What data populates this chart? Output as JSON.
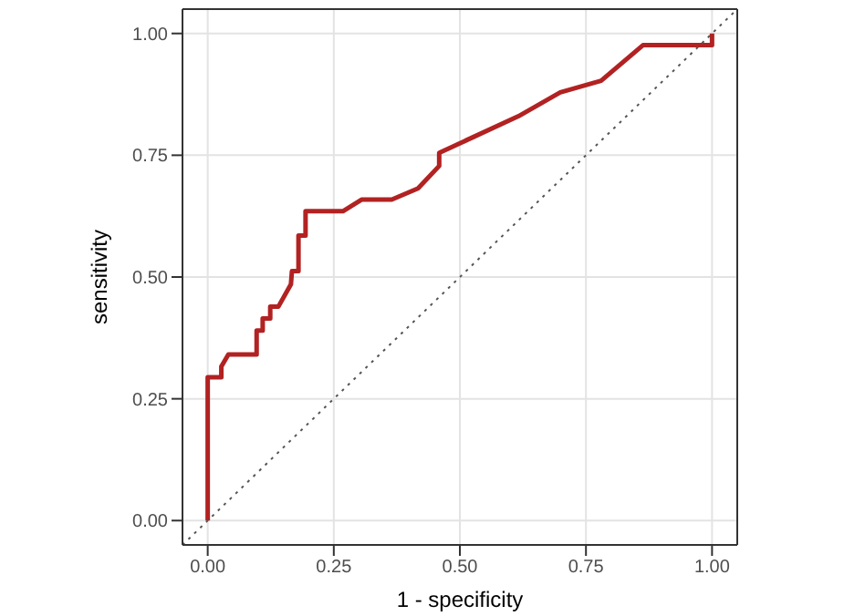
{
  "chart_data": {
    "type": "line",
    "xlabel": "1 - specificity",
    "ylabel": "sensitivity",
    "xlim": [
      -0.05,
      1.05
    ],
    "ylim": [
      -0.05,
      1.05
    ],
    "xticks": [
      {
        "value": 0,
        "label": "0.00"
      },
      {
        "value": 0.25,
        "label": "0.25"
      },
      {
        "value": 0.5,
        "label": "0.50"
      },
      {
        "value": 0.75,
        "label": "0.75"
      },
      {
        "value": 1,
        "label": "1.00"
      }
    ],
    "yticks": [
      {
        "value": 0,
        "label": "0.00"
      },
      {
        "value": 0.25,
        "label": "0.25"
      },
      {
        "value": 0.5,
        "label": "0.50"
      },
      {
        "value": 0.75,
        "label": "0.75"
      },
      {
        "value": 1,
        "label": "1.00"
      }
    ],
    "grid": true,
    "legend": false,
    "marker": "none",
    "series": [
      {
        "color": "#b22222",
        "line_style": "solid",
        "x": [
          0,
          0,
          0.027,
          0.027,
          0.041,
          0.097,
          0.097,
          0.109,
          0.109,
          0.124,
          0.124,
          0.14,
          0.165,
          0.167,
          0.18,
          0.18,
          0.194,
          0.194,
          0.268,
          0.305,
          0.365,
          0.417,
          0.459,
          0.459,
          0.616,
          0.699,
          0.78,
          0.863,
          1,
          1
        ],
        "values": [
          0,
          0.294,
          0.294,
          0.316,
          0.341,
          0.341,
          0.39,
          0.39,
          0.415,
          0.415,
          0.439,
          0.439,
          0.485,
          0.512,
          0.512,
          0.585,
          0.585,
          0.635,
          0.635,
          0.659,
          0.659,
          0.682,
          0.728,
          0.755,
          0.83,
          0.879,
          0.903,
          0.976,
          0.976,
          1
        ]
      },
      {
        "color": "#555555",
        "line_style": "dotted",
        "x": [
          -0.05,
          1.05
        ],
        "values": [
          -0.05,
          1.05
        ]
      }
    ]
  }
}
